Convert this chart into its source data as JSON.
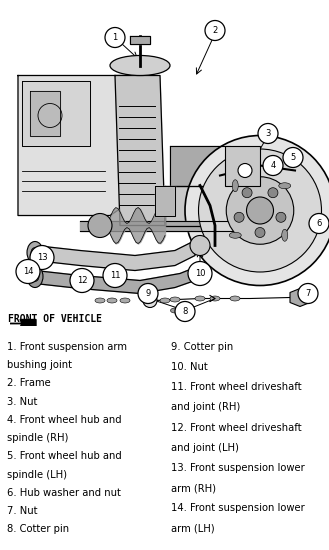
{
  "background_color": "#ffffff",
  "figsize": [
    3.29,
    5.5
  ],
  "dpi": 100,
  "legend_left": [
    [
      "1. Front suspension arm",
      0
    ],
    [
      "bushing joint",
      1
    ],
    [
      "2. Frame",
      0
    ],
    [
      "3. Nut",
      0
    ],
    [
      "4. Front wheel hub and",
      0
    ],
    [
      "spindle (RH)",
      1
    ],
    [
      "5. Front wheel hub and",
      0
    ],
    [
      "spindle (LH)",
      1
    ],
    [
      "6. Hub washer and nut",
      0
    ],
    [
      "7. Nut",
      0
    ],
    [
      "8. Cotter pin",
      0
    ]
  ],
  "legend_right": [
    [
      "9. Cotter pin",
      0
    ],
    [
      "10. Nut",
      0
    ],
    [
      "11. Front wheel driveshaft",
      0
    ],
    [
      "and joint (RH)",
      1
    ],
    [
      "12. Front wheel driveshaft",
      0
    ],
    [
      "and joint (LH)",
      1
    ],
    [
      "13. Front suspension lower",
      0
    ],
    [
      "arm (RH)",
      1
    ],
    [
      "14. Front suspension lower",
      0
    ],
    [
      "arm (LH)",
      1
    ]
  ],
  "front_label": "FRONT OF VEHICLE",
  "text_fontsize": 7.2,
  "callout_fontsize": 6.5,
  "front_fontsize": 7.5
}
